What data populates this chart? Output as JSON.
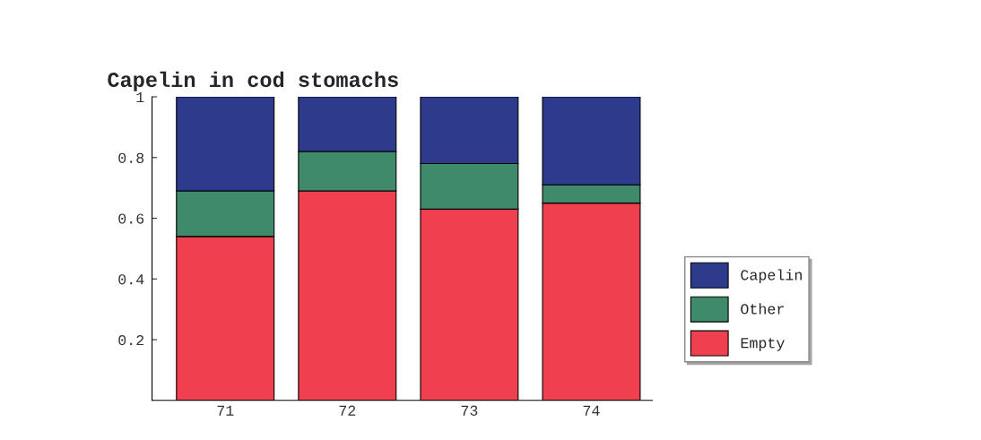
{
  "chart_data": {
    "type": "bar",
    "title": "Capelin in cod stomachs",
    "stacked": true,
    "categories": [
      "71",
      "72",
      "73",
      "74"
    ],
    "series": [
      {
        "name": "Empty",
        "color": "#f0404f",
        "values": [
          0.54,
          0.69,
          0.63,
          0.65
        ]
      },
      {
        "name": "Other",
        "color": "#3f8a6a",
        "values": [
          0.15,
          0.13,
          0.15,
          0.06
        ]
      },
      {
        "name": "Capelin",
        "color": "#2e3a8c",
        "values": [
          0.31,
          0.18,
          0.22,
          0.29
        ]
      }
    ],
    "ylim": [
      0,
      1
    ],
    "yticks": [
      0.2,
      0.4,
      0.6,
      0.8,
      {
        "value": 1,
        "label": "1"
      }
    ],
    "grid": false,
    "legend": "right"
  }
}
